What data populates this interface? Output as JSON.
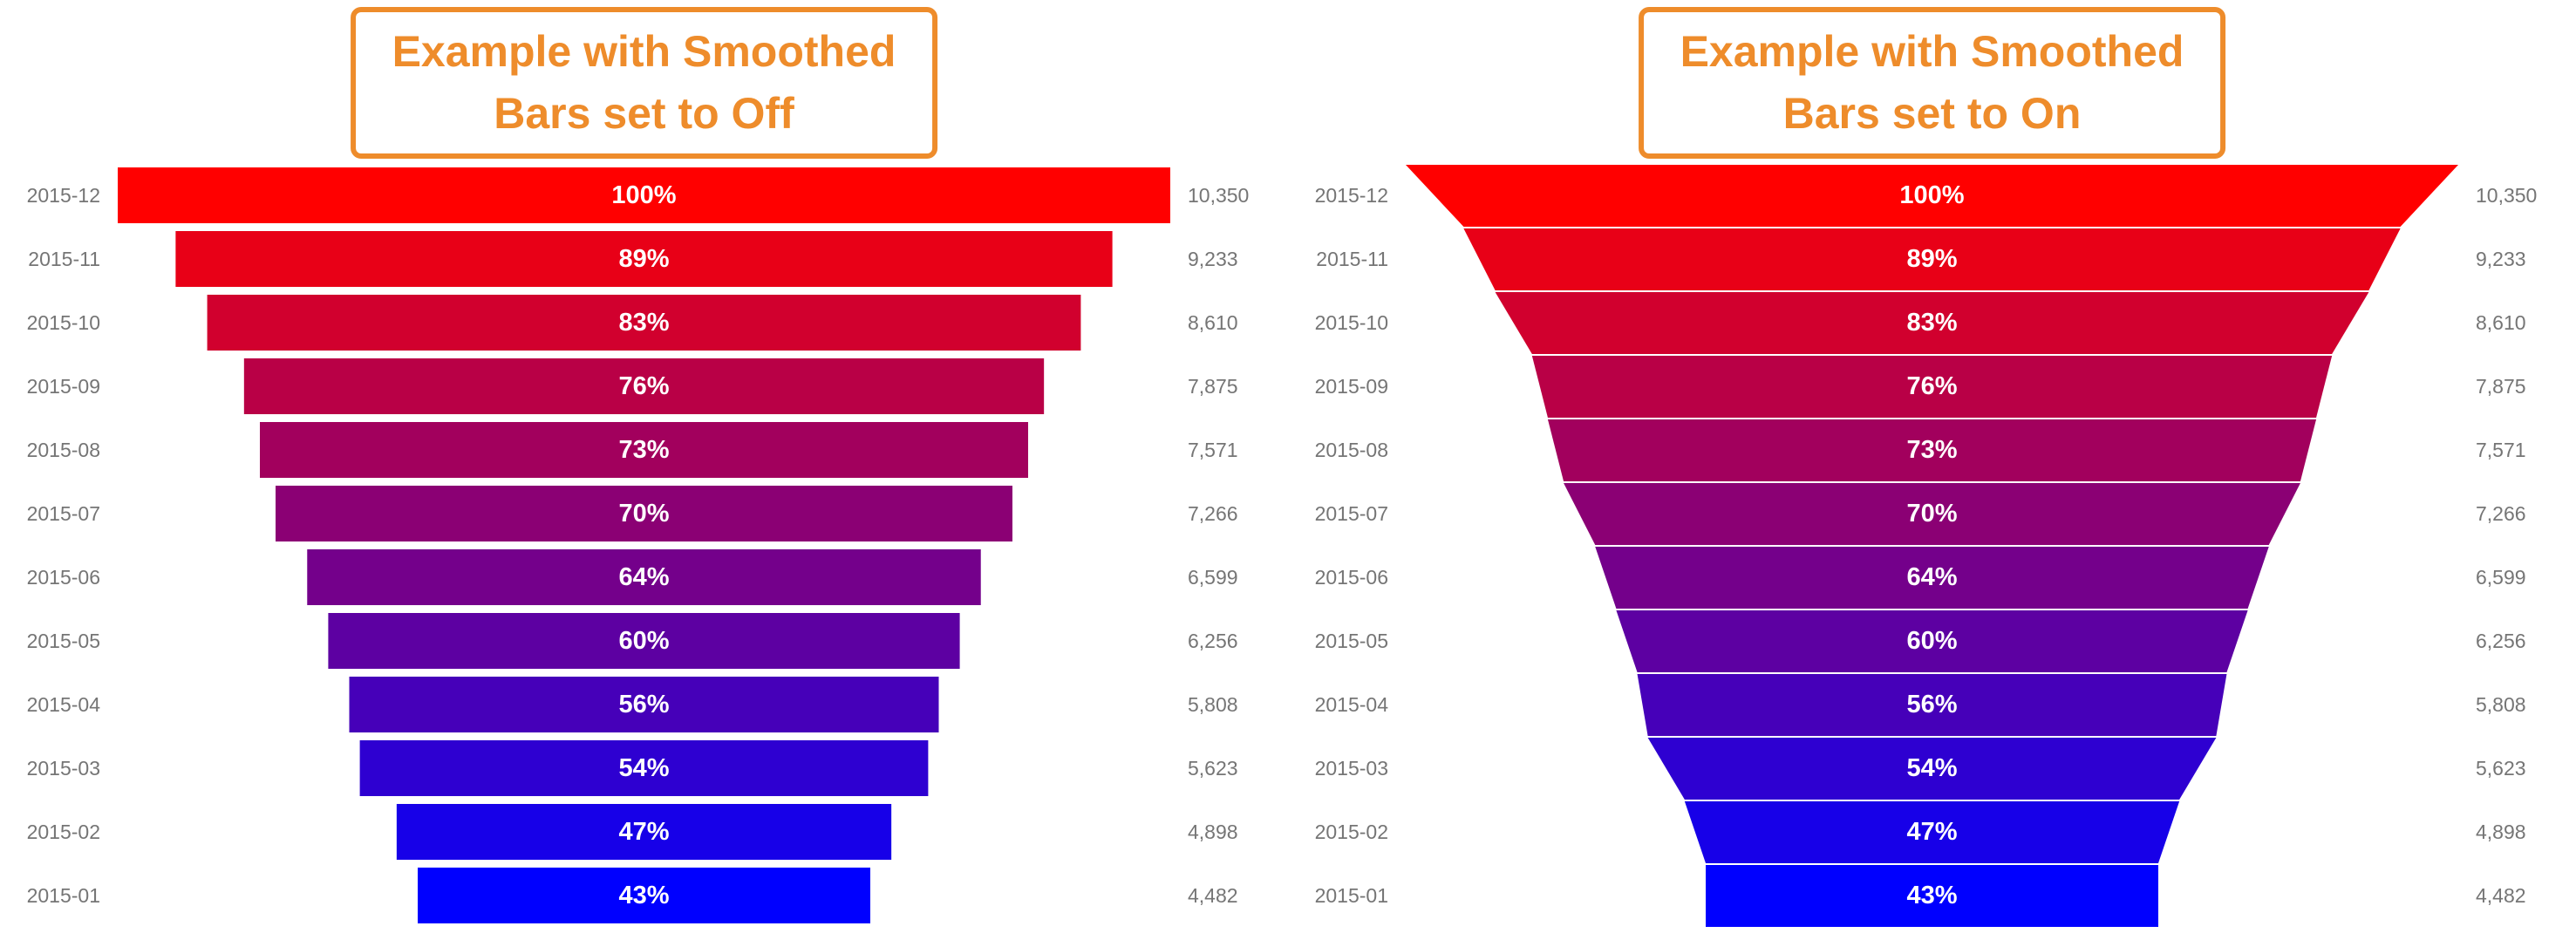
{
  "charts": [
    {
      "id": "funnel-smoothed-off",
      "title_line1": "Example with Smoothed",
      "title_line2": "Bars set to Off",
      "smoothed": false,
      "rows": [
        {
          "label": "2015-12",
          "pct": 100,
          "pct_label": "100%",
          "value": "10,350"
        },
        {
          "label": "2015-11",
          "pct": 89,
          "pct_label": "89%",
          "value": "9,233"
        },
        {
          "label": "2015-10",
          "pct": 83,
          "pct_label": "83%",
          "value": "8,610"
        },
        {
          "label": "2015-09",
          "pct": 76,
          "pct_label": "76%",
          "value": "7,875"
        },
        {
          "label": "2015-08",
          "pct": 73,
          "pct_label": "73%",
          "value": "7,571"
        },
        {
          "label": "2015-07",
          "pct": 70,
          "pct_label": "70%",
          "value": "7,266"
        },
        {
          "label": "2015-06",
          "pct": 64,
          "pct_label": "64%",
          "value": "6,599"
        },
        {
          "label": "2015-05",
          "pct": 60,
          "pct_label": "60%",
          "value": "6,256"
        },
        {
          "label": "2015-04",
          "pct": 56,
          "pct_label": "56%",
          "value": "5,808"
        },
        {
          "label": "2015-03",
          "pct": 54,
          "pct_label": "54%",
          "value": "5,623"
        },
        {
          "label": "2015-02",
          "pct": 47,
          "pct_label": "47%",
          "value": "4,898"
        },
        {
          "label": "2015-01",
          "pct": 43,
          "pct_label": "43%",
          "value": "4,482"
        }
      ]
    },
    {
      "id": "funnel-smoothed-on",
      "title_line1": "Example with Smoothed",
      "title_line2": "Bars set to On",
      "smoothed": true,
      "rows": [
        {
          "label": "2015-12",
          "pct": 100,
          "pct_label": "100%",
          "value": "10,350"
        },
        {
          "label": "2015-11",
          "pct": 89,
          "pct_label": "89%",
          "value": "9,233"
        },
        {
          "label": "2015-10",
          "pct": 83,
          "pct_label": "83%",
          "value": "8,610"
        },
        {
          "label": "2015-09",
          "pct": 76,
          "pct_label": "76%",
          "value": "7,875"
        },
        {
          "label": "2015-08",
          "pct": 73,
          "pct_label": "73%",
          "value": "7,571"
        },
        {
          "label": "2015-07",
          "pct": 70,
          "pct_label": "70%",
          "value": "7,266"
        },
        {
          "label": "2015-06",
          "pct": 64,
          "pct_label": "64%",
          "value": "6,599"
        },
        {
          "label": "2015-05",
          "pct": 60,
          "pct_label": "60%",
          "value": "6,256"
        },
        {
          "label": "2015-04",
          "pct": 56,
          "pct_label": "56%",
          "value": "5,808"
        },
        {
          "label": "2015-03",
          "pct": 54,
          "pct_label": "54%",
          "value": "5,623"
        },
        {
          "label": "2015-02",
          "pct": 47,
          "pct_label": "47%",
          "value": "4,898"
        },
        {
          "label": "2015-01",
          "pct": 43,
          "pct_label": "43%",
          "value": "4,482"
        }
      ]
    }
  ],
  "colors": {
    "accent_orange": "#ee8c2b",
    "label_gray": "#757575",
    "percent_text": "#ffffff",
    "background": "#ffffff",
    "bar_colors": [
      "#ff0000",
      "#e80017",
      "#d1002e",
      "#b90046",
      "#a2005d",
      "#8b0074",
      "#74008b",
      "#5d00a2",
      "#4600b9",
      "#2e00d1",
      "#1700e8",
      "#0000ff"
    ]
  },
  "chart_data": [
    {
      "type": "bar",
      "variant": "funnel",
      "title": "Example with Smoothed Bars set to Off",
      "smoothed_bars": "Off",
      "categories": [
        "2015-12",
        "2015-11",
        "2015-10",
        "2015-09",
        "2015-08",
        "2015-07",
        "2015-06",
        "2015-05",
        "2015-04",
        "2015-03",
        "2015-02",
        "2015-01"
      ],
      "values_percent": [
        100,
        89,
        83,
        76,
        73,
        70,
        64,
        60,
        56,
        54,
        47,
        43
      ],
      "values_count": [
        10350,
        9233,
        8610,
        7875,
        7571,
        7266,
        6599,
        6256,
        5808,
        5623,
        4898,
        4482
      ],
      "xlabel": "",
      "ylabel": "",
      "legend": "none",
      "grid": false,
      "color_scale": "red-to-blue gradient, one color per stage"
    },
    {
      "type": "bar",
      "variant": "funnel",
      "title": "Example with Smoothed Bars set to On",
      "smoothed_bars": "On",
      "categories": [
        "2015-12",
        "2015-11",
        "2015-10",
        "2015-09",
        "2015-08",
        "2015-07",
        "2015-06",
        "2015-05",
        "2015-04",
        "2015-03",
        "2015-02",
        "2015-01"
      ],
      "values_percent": [
        100,
        89,
        83,
        76,
        73,
        70,
        64,
        60,
        56,
        54,
        47,
        43
      ],
      "values_count": [
        10350,
        9233,
        8610,
        7875,
        7571,
        7266,
        6599,
        6256,
        5808,
        5623,
        4898,
        4482
      ],
      "xlabel": "",
      "ylabel": "",
      "legend": "none",
      "grid": false,
      "color_scale": "red-to-blue gradient, one color per stage"
    }
  ]
}
